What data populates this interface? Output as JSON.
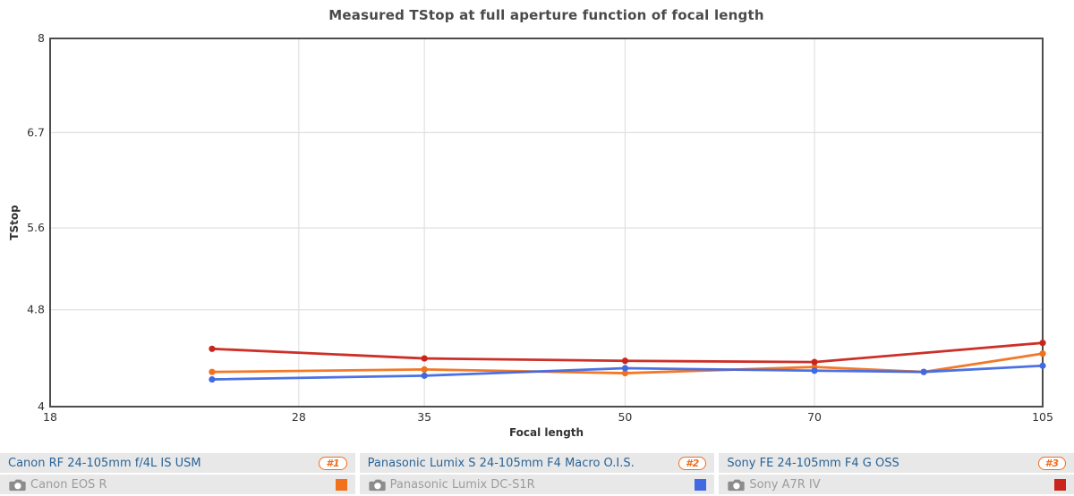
{
  "chart_data": {
    "type": "line",
    "title": "Measured TStop at full aperture function of focal length",
    "xlabel": "Focal length",
    "ylabel": "TStop",
    "x_scale": "log",
    "y_scale": "log",
    "xlim": [
      18,
      105
    ],
    "ylim": [
      4,
      8
    ],
    "x_ticks": [
      18,
      28,
      35,
      50,
      70,
      105
    ],
    "y_ticks": [
      8,
      6.7,
      5.6,
      4.8,
      4
    ],
    "x_gridlines": [
      28,
      35,
      50,
      70
    ],
    "y_gridlines": [
      6.7,
      5.6,
      4.8
    ],
    "grid": true,
    "legend_position": "bottom",
    "series": [
      {
        "name": "Canon RF 24-105mm f/4L IS USM",
        "color": "#f2711c",
        "x": [
          24,
          35,
          50,
          70,
          85,
          105
        ],
        "y": [
          4.27,
          4.29,
          4.26,
          4.31,
          4.27,
          4.42
        ]
      },
      {
        "name": "Panasonic Lumix S 24-105mm F4 Macro O.I.S.",
        "color": "#4169e1",
        "x": [
          24,
          35,
          50,
          70,
          85,
          105
        ],
        "y": [
          4.21,
          4.24,
          4.3,
          4.28,
          4.27,
          4.32
        ]
      },
      {
        "name": "Sony FE 24-105mm F4 G OSS",
        "color": "#c9251c",
        "x": [
          24,
          35,
          50,
          70,
          105
        ],
        "y": [
          4.46,
          4.38,
          4.36,
          4.35,
          4.51
        ]
      }
    ]
  },
  "legend": {
    "items": [
      {
        "lens": "Canon RF 24-105mm f/4L IS USM",
        "rank": "#1",
        "camera": "Canon EOS R",
        "color": "#f2711c"
      },
      {
        "lens": "Panasonic Lumix S 24-105mm F4 Macro O.I.S.",
        "rank": "#2",
        "camera": "Panasonic Lumix DC-S1R",
        "color": "#4169e1"
      },
      {
        "lens": "Sony FE 24-105mm F4 G OSS",
        "rank": "#3",
        "camera": "Sony A7R IV",
        "color": "#c9251c"
      }
    ]
  },
  "style": {
    "border_color": "#4d4d4d",
    "grid_color": "#e0e0e0",
    "tick_color": "#333333",
    "badge_color": "#f26c1c"
  }
}
